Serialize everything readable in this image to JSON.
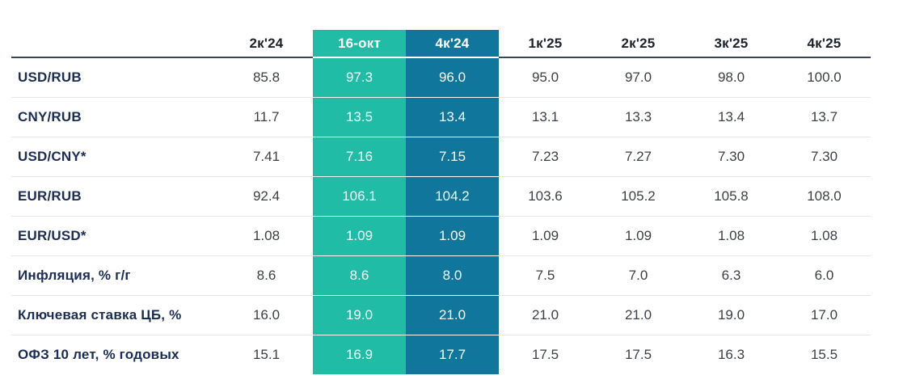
{
  "chart_data": {
    "type": "table",
    "title": "",
    "columns": [
      "",
      "2к'24",
      "16-окт",
      "4к'24",
      "1к'25",
      "2к'25",
      "3к'25",
      "4к'25"
    ],
    "column_highlights": [
      "none",
      "none",
      "green",
      "blue",
      "none",
      "none",
      "none",
      "none"
    ],
    "rows": [
      {
        "label": "USD/RUB",
        "values": [
          "85.8",
          "97.3",
          "96.0",
          "95.0",
          "97.0",
          "98.0",
          "100.0"
        ]
      },
      {
        "label": "CNY/RUB",
        "values": [
          "11.7",
          "13.5",
          "13.4",
          "13.1",
          "13.3",
          "13.4",
          "13.7"
        ]
      },
      {
        "label": "USD/CNY*",
        "values": [
          "7.41",
          "7.16",
          "7.15",
          "7.23",
          "7.27",
          "7.30",
          "7.30"
        ]
      },
      {
        "label": "EUR/RUB",
        "values": [
          "92.4",
          "106.1",
          "104.2",
          "103.6",
          "105.2",
          "105.8",
          "108.0"
        ]
      },
      {
        "label": "EUR/USD*",
        "values": [
          "1.08",
          "1.09",
          "1.09",
          "1.09",
          "1.09",
          "1.08",
          "1.08"
        ]
      },
      {
        "label": "Инфляция, % г/г",
        "values": [
          "8.6",
          "8.6",
          "8.0",
          "7.5",
          "7.0",
          "6.3",
          "6.0"
        ]
      },
      {
        "label": "Ключевая ставка ЦБ, %",
        "values": [
          "16.0",
          "19.0",
          "21.0",
          "21.0",
          "21.0",
          "19.0",
          "17.0"
        ]
      },
      {
        "label": "ОФЗ 10 лет, % годовых",
        "values": [
          "15.1",
          "16.9",
          "17.7",
          "17.5",
          "17.5",
          "16.3",
          "15.5"
        ]
      }
    ],
    "layout": {
      "highlight_green_column": "16-окт",
      "highlight_blue_column": "4к'24",
      "grid": "horizontal-separators-only"
    },
    "colors": {
      "green_highlight": "#20BCA5",
      "blue_highlight": "#10769B",
      "header_rule": "#33475A",
      "row_separator": "#E6E6E6",
      "row_label_text": "#1B2C55",
      "header_text": "#1E222A",
      "value_text": "#3C4046",
      "highlight_value_text": "#FFFFFF",
      "background": "#FFFFFF"
    }
  }
}
